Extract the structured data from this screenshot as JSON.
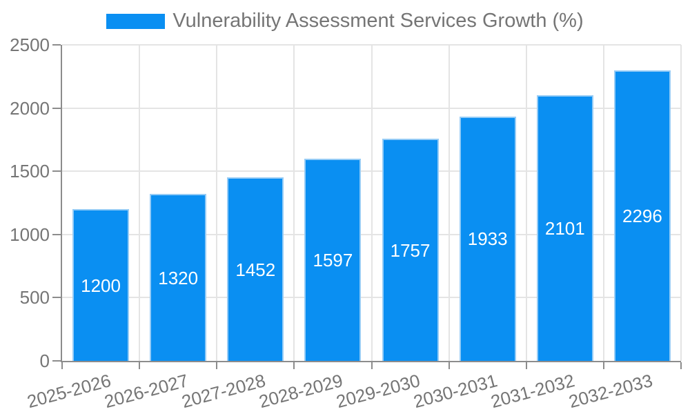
{
  "legend": {
    "label": "Vulnerability Assessment Services Growth (%)",
    "swatch_color": "#0a8ff2"
  },
  "chart_data": {
    "type": "bar",
    "title": "Vulnerability Assessment Services Growth (%)",
    "categories": [
      "2025-2026",
      "2026-2027",
      "2027-2028",
      "2028-2029",
      "2029-2030",
      "2030-2031",
      "2031-2032",
      "2032-2033"
    ],
    "values": [
      1200,
      1320,
      1452,
      1597,
      1757,
      1933,
      2101,
      2296
    ],
    "xlabel": "",
    "ylabel": "",
    "ylim": [
      0,
      2500
    ],
    "yticks": [
      0,
      500,
      1000,
      1500,
      2000,
      2500
    ],
    "grid": true,
    "legend_position": "top-center",
    "bar_color": "#0a8ff2",
    "bar_border_color": "#96ccf6",
    "value_label_color": "#ffffff",
    "axis_color": "#8c8c8c",
    "grid_color": "#e4e4e4",
    "text_color": "#757575"
  }
}
